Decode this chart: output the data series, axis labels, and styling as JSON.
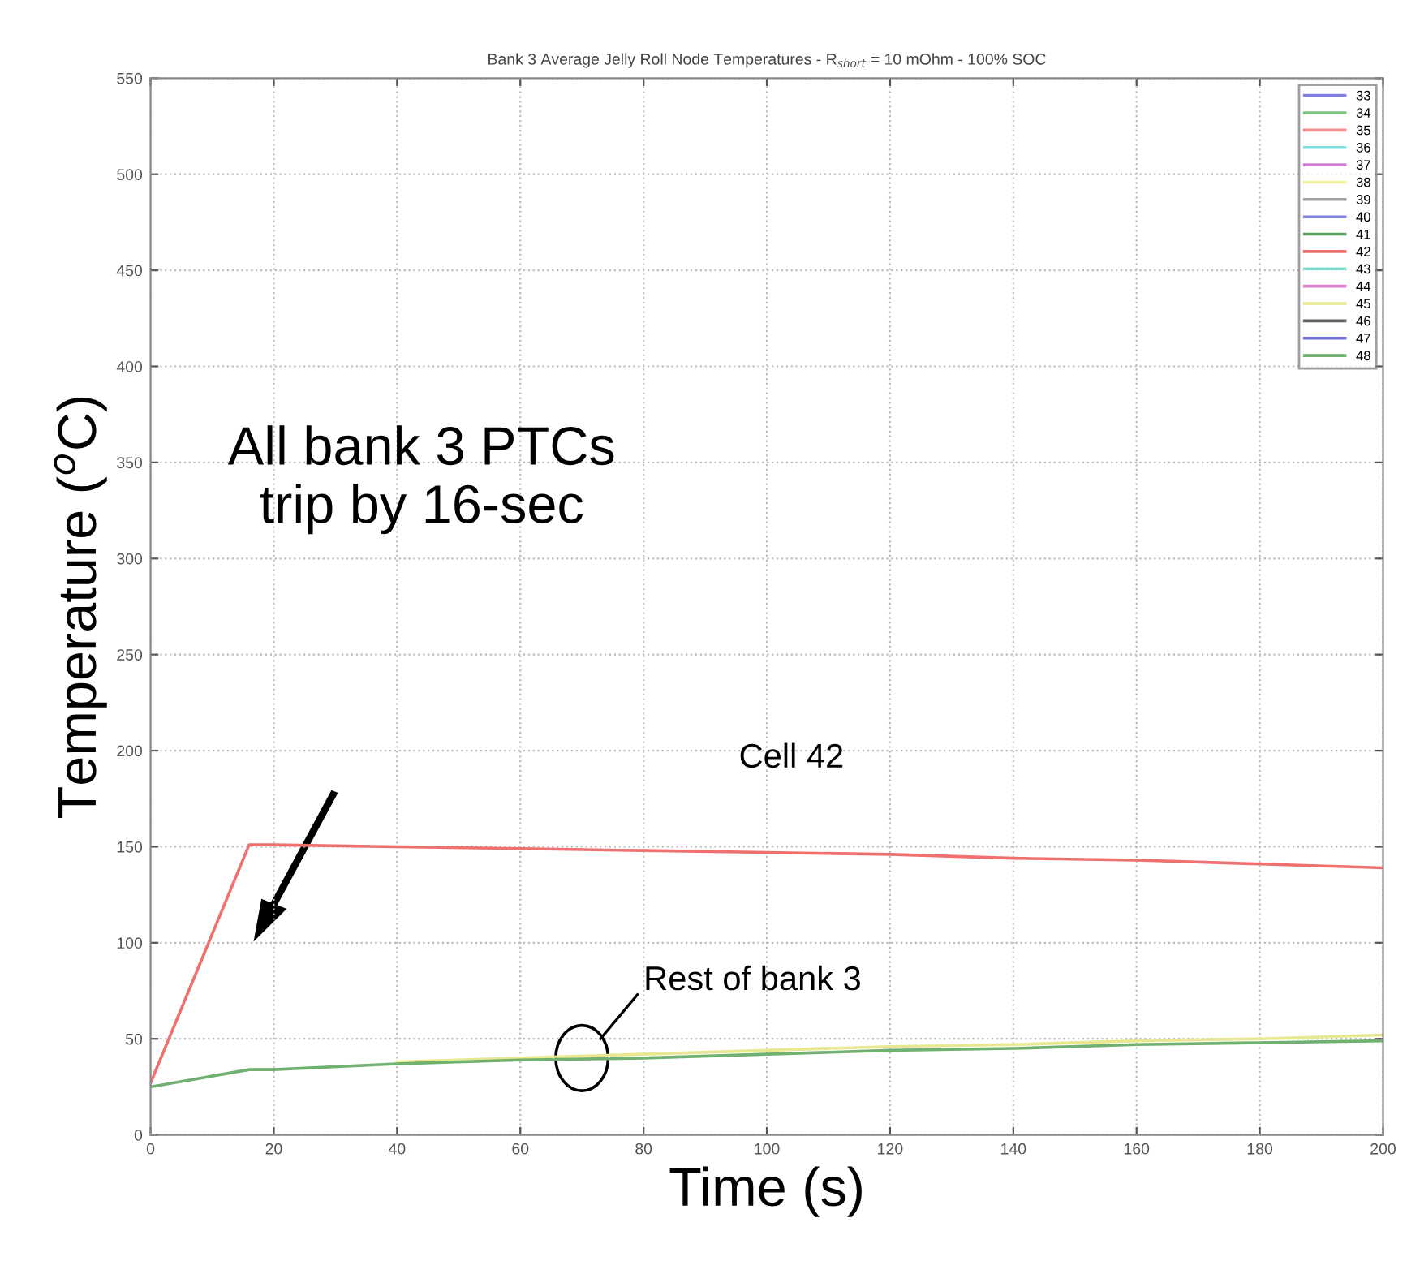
{
  "chart_data": {
    "type": "line",
    "title": "Bank 3 Average Jelly Roll Node Temperatures - R$_{short}$ = 10 mOhm - 100% SOC",
    "xlabel": "Time (s)",
    "ylabel": "Temperature ($^{o}$C)",
    "x": [
      0,
      16,
      20,
      40,
      60,
      80,
      100,
      120,
      140,
      160,
      180,
      200
    ],
    "series": [
      {
        "name": "33",
        "color": "#8080e0",
        "values": [
          null,
          null,
          null,
          null,
          null,
          null,
          null,
          null,
          null,
          null,
          null,
          null
        ]
      },
      {
        "name": "34",
        "color": "#80c080",
        "values": [
          null,
          null,
          null,
          null,
          null,
          null,
          null,
          null,
          null,
          null,
          null,
          null
        ]
      },
      {
        "name": "35",
        "color": "#f09090",
        "values": [
          null,
          null,
          null,
          null,
          null,
          null,
          null,
          null,
          null,
          null,
          null,
          null
        ]
      },
      {
        "name": "36",
        "color": "#80e0e0",
        "values": [
          null,
          null,
          null,
          null,
          null,
          null,
          null,
          null,
          null,
          null,
          null,
          null
        ]
      },
      {
        "name": "37",
        "color": "#d080d0",
        "values": [
          null,
          null,
          null,
          null,
          null,
          null,
          null,
          null,
          null,
          null,
          null,
          null
        ]
      },
      {
        "name": "38",
        "color": "#f0f0a0",
        "values": [
          null,
          null,
          null,
          null,
          null,
          null,
          null,
          null,
          null,
          null,
          null,
          null
        ]
      },
      {
        "name": "39",
        "color": "#a0a0a0",
        "values": [
          null,
          null,
          null,
          null,
          null,
          null,
          null,
          null,
          null,
          null,
          null,
          null
        ]
      },
      {
        "name": "40",
        "color": "#8080e0",
        "values": [
          null,
          null,
          null,
          null,
          null,
          null,
          null,
          null,
          null,
          null,
          null,
          null
        ]
      },
      {
        "name": "41",
        "color": "#60a060",
        "values": [
          null,
          null,
          null,
          null,
          null,
          null,
          null,
          null,
          null,
          null,
          null,
          null
        ]
      },
      {
        "name": "42",
        "color": "#f07070",
        "values": [
          27,
          151,
          151,
          150,
          149,
          148,
          147,
          146,
          144,
          143,
          141,
          139
        ]
      },
      {
        "name": "43",
        "color": "#80e0d0",
        "values": [
          null,
          null,
          null,
          null,
          null,
          null,
          null,
          null,
          null,
          null,
          null,
          null
        ]
      },
      {
        "name": "44",
        "color": "#e080d0",
        "values": [
          null,
          null,
          null,
          null,
          null,
          null,
          null,
          null,
          null,
          null,
          null,
          null
        ]
      },
      {
        "name": "45",
        "color": "#e8e890",
        "values": [
          null,
          null,
          null,
          38,
          40,
          42,
          44,
          46,
          47,
          49,
          50,
          52
        ]
      },
      {
        "name": "46",
        "color": "#606060",
        "values": [
          null,
          null,
          null,
          null,
          null,
          null,
          null,
          null,
          null,
          null,
          null,
          null
        ]
      },
      {
        "name": "47",
        "color": "#7070e0",
        "values": [
          null,
          null,
          null,
          null,
          null,
          null,
          null,
          null,
          null,
          null,
          null,
          null
        ]
      },
      {
        "name": "48",
        "color": "#70b070",
        "values": [
          25,
          34,
          34,
          37,
          39,
          40,
          42,
          44,
          45,
          47,
          48,
          49
        ]
      }
    ],
    "xlim": [
      0,
      200
    ],
    "xticks": [
      0,
      20,
      40,
      60,
      80,
      100,
      120,
      140,
      160,
      180,
      200
    ],
    "ylim": [
      0,
      550
    ],
    "yticks": [
      0,
      50,
      100,
      150,
      200,
      250,
      300,
      350,
      400,
      450,
      500,
      550
    ],
    "grid": true,
    "legend": "top right",
    "annotations": [
      "All bank 3 PTCs\ntrip by 16-sec",
      "Cell 42",
      {
        "text": "Rest of bank 3",
        "x": 70,
        "y": 40
      }
    ]
  }
}
